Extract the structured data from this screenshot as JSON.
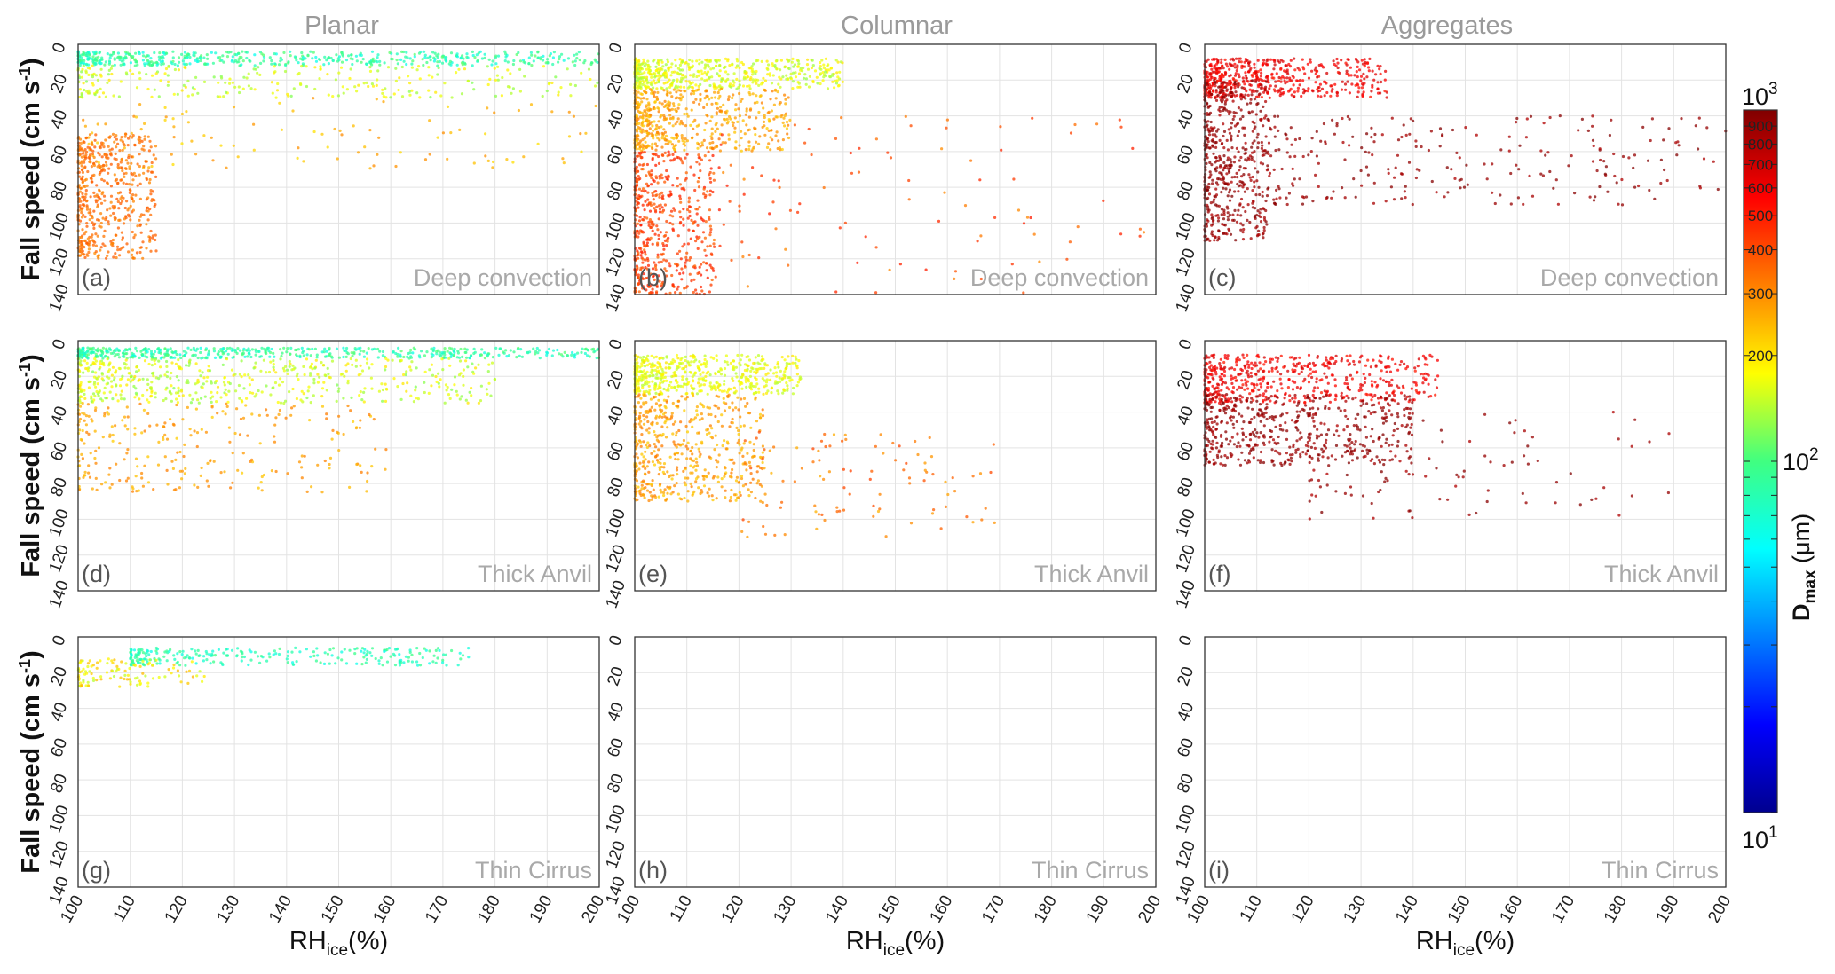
{
  "figure": {
    "columns": [
      "Planar",
      "Columnar",
      "Aggregates"
    ],
    "rows": [
      "Deep convection",
      "Thick Anvil",
      "Thin Cirrus"
    ],
    "panel_labels": [
      "(a)",
      "(b)",
      "(c)",
      "(d)",
      "(e)",
      "(f)",
      "(g)",
      "(h)",
      "(i)"
    ],
    "ylabel_main": "Fall speed (cm s",
    "ylabel_sup": "-1",
    "ylabel_end": ")",
    "xlabel_main": "RH",
    "xlabel_sub": "ice",
    "xlabel_end": "(%)",
    "colorbar": {
      "label_main": "D",
      "label_sub": "max",
      "label_unit": " (μm)",
      "major_labels": [
        {
          "base": "10",
          "exp": "1",
          "value": 10
        },
        {
          "base": "10",
          "exp": "2",
          "value": 100
        },
        {
          "base": "10",
          "exp": "3",
          "value": 1000
        }
      ],
      "minor_labels": [
        "200",
        "300",
        "400",
        "500",
        "600",
        "700",
        "800",
        "900"
      ],
      "minor_values": [
        200,
        300,
        400,
        500,
        600,
        700,
        800,
        900
      ],
      "colormap": "jet"
    }
  },
  "chart_data": [
    {
      "type": "scatter",
      "panel": "(a)",
      "habit": "Planar",
      "regime": "Deep convection",
      "xlabel": "RHice(%)",
      "ylabel": "Fall speed (cm s-1)",
      "xlim": [
        100,
        200
      ],
      "ylim": [
        0,
        140
      ],
      "y_inverted": true,
      "x_ticks": [
        100,
        110,
        120,
        130,
        140,
        150,
        160,
        170,
        180,
        190,
        200
      ],
      "y_ticks": [
        0,
        20,
        40,
        60,
        80,
        100,
        120,
        140
      ],
      "grid": true,
      "x_tick_labels_shown": false,
      "clusters": [
        {
          "x": [
            100,
            200
          ],
          "y": [
            4,
            12
          ],
          "dmax_um": [
            60,
            110
          ],
          "density": "high"
        },
        {
          "x": [
            100,
            200
          ],
          "y": [
            12,
            30
          ],
          "dmax_um": [
            120,
            200
          ],
          "density": "medium"
        },
        {
          "x": [
            100,
            200
          ],
          "y": [
            30,
            70
          ],
          "dmax_um": [
            200,
            300
          ],
          "density": "low"
        },
        {
          "x": [
            100,
            115
          ],
          "y": [
            50,
            120
          ],
          "dmax_um": [
            300,
            380
          ],
          "density": "high"
        }
      ]
    },
    {
      "type": "scatter",
      "panel": "(b)",
      "habit": "Columnar",
      "regime": "Deep convection",
      "xlabel": "RHice(%)",
      "ylabel": "Fall speed (cm s-1)",
      "xlim": [
        100,
        200
      ],
      "ylim": [
        0,
        140
      ],
      "y_inverted": true,
      "x_ticks": [
        100,
        110,
        120,
        130,
        140,
        150,
        160,
        170,
        180,
        190,
        200
      ],
      "y_ticks": [
        0,
        20,
        40,
        60,
        80,
        100,
        120,
        140
      ],
      "grid": true,
      "x_tick_labels_shown": false,
      "clusters": [
        {
          "x": [
            100,
            140
          ],
          "y": [
            8,
            25
          ],
          "dmax_um": [
            130,
            200
          ],
          "density": "high"
        },
        {
          "x": [
            100,
            130
          ],
          "y": [
            25,
            60
          ],
          "dmax_um": [
            220,
            320
          ],
          "density": "high"
        },
        {
          "x": [
            100,
            115
          ],
          "y": [
            60,
            140
          ],
          "dmax_um": [
            350,
            500
          ],
          "density": "high"
        },
        {
          "x": [
            115,
            200
          ],
          "y": [
            40,
            140
          ],
          "dmax_um": [
            300,
            500
          ],
          "density": "low"
        }
      ]
    },
    {
      "type": "scatter",
      "panel": "(c)",
      "habit": "Aggregates",
      "regime": "Deep convection",
      "xlabel": "RHice(%)",
      "ylabel": "Fall speed (cm s-1)",
      "xlim": [
        100,
        200
      ],
      "ylim": [
        0,
        140
      ],
      "y_inverted": true,
      "x_ticks": [
        100,
        110,
        120,
        130,
        140,
        150,
        160,
        170,
        180,
        190,
        200
      ],
      "y_ticks": [
        0,
        20,
        40,
        60,
        80,
        100,
        120,
        140
      ],
      "grid": true,
      "x_tick_labels_shown": false,
      "clusters": [
        {
          "x": [
            100,
            135
          ],
          "y": [
            8,
            30
          ],
          "dmax_um": [
            500,
            700
          ],
          "density": "high"
        },
        {
          "x": [
            100,
            112
          ],
          "y": [
            20,
            110
          ],
          "dmax_um": [
            800,
            1000
          ],
          "density": "high"
        },
        {
          "x": [
            112,
            200
          ],
          "y": [
            40,
            90
          ],
          "dmax_um": [
            800,
            1000
          ],
          "density": "medium"
        }
      ]
    },
    {
      "type": "scatter",
      "panel": "(d)",
      "habit": "Planar",
      "regime": "Thick Anvil",
      "xlabel": "RHice(%)",
      "ylabel": "Fall speed (cm s-1)",
      "xlim": [
        100,
        200
      ],
      "ylim": [
        0,
        140
      ],
      "y_inverted": true,
      "x_ticks": [
        100,
        110,
        120,
        130,
        140,
        150,
        160,
        170,
        180,
        190,
        200
      ],
      "y_ticks": [
        0,
        20,
        40,
        60,
        80,
        100,
        120,
        140
      ],
      "grid": true,
      "x_tick_labels_shown": false,
      "clusters": [
        {
          "x": [
            100,
            200
          ],
          "y": [
            4,
            10
          ],
          "dmax_um": [
            60,
            110
          ],
          "density": "high"
        },
        {
          "x": [
            100,
            180
          ],
          "y": [
            10,
            35
          ],
          "dmax_um": [
            120,
            200
          ],
          "density": "high"
        },
        {
          "x": [
            100,
            160
          ],
          "y": [
            35,
            85
          ],
          "dmax_um": [
            220,
            320
          ],
          "density": "medium"
        }
      ]
    },
    {
      "type": "scatter",
      "panel": "(e)",
      "habit": "Columnar",
      "regime": "Thick Anvil",
      "xlabel": "RHice(%)",
      "ylabel": "Fall speed (cm s-1)",
      "xlim": [
        100,
        200
      ],
      "ylim": [
        0,
        140
      ],
      "y_inverted": true,
      "x_ticks": [
        100,
        110,
        120,
        130,
        140,
        150,
        160,
        170,
        180,
        190,
        200
      ],
      "y_ticks": [
        0,
        20,
        40,
        60,
        80,
        100,
        120,
        140
      ],
      "grid": true,
      "x_tick_labels_shown": false,
      "clusters": [
        {
          "x": [
            100,
            132
          ],
          "y": [
            8,
            30
          ],
          "dmax_um": [
            140,
            200
          ],
          "density": "high"
        },
        {
          "x": [
            100,
            125
          ],
          "y": [
            30,
            90
          ],
          "dmax_um": [
            220,
            330
          ],
          "density": "high"
        },
        {
          "x": [
            120,
            170
          ],
          "y": [
            50,
            110
          ],
          "dmax_um": [
            250,
            420
          ],
          "density": "low"
        }
      ]
    },
    {
      "type": "scatter",
      "panel": "(f)",
      "habit": "Aggregates",
      "regime": "Thick Anvil",
      "xlabel": "RHice(%)",
      "ylabel": "Fall speed (cm s-1)",
      "xlim": [
        100,
        200
      ],
      "ylim": [
        0,
        140
      ],
      "y_inverted": true,
      "x_ticks": [
        100,
        110,
        120,
        130,
        140,
        150,
        160,
        170,
        180,
        190,
        200
      ],
      "y_ticks": [
        0,
        20,
        40,
        60,
        80,
        100,
        120,
        140
      ],
      "grid": true,
      "x_tick_labels_shown": false,
      "clusters": [
        {
          "x": [
            100,
            145
          ],
          "y": [
            8,
            35
          ],
          "dmax_um": [
            500,
            700
          ],
          "density": "high"
        },
        {
          "x": [
            100,
            140
          ],
          "y": [
            30,
            70
          ],
          "dmax_um": [
            800,
            1000
          ],
          "density": "high"
        },
        {
          "x": [
            120,
            190
          ],
          "y": [
            40,
            100
          ],
          "dmax_um": [
            800,
            1000
          ],
          "density": "low"
        }
      ]
    },
    {
      "type": "scatter",
      "panel": "(g)",
      "habit": "Planar",
      "regime": "Thin Cirrus",
      "xlabel": "RHice(%)",
      "ylabel": "Fall speed (cm s-1)",
      "xlim": [
        100,
        200
      ],
      "ylim": [
        0,
        140
      ],
      "y_inverted": true,
      "x_ticks": [
        100,
        110,
        120,
        130,
        140,
        150,
        160,
        170,
        180,
        190,
        200
      ],
      "y_ticks": [
        0,
        20,
        40,
        60,
        80,
        100,
        120,
        140
      ],
      "grid": true,
      "x_tick_labels_shown": true,
      "clusters": [
        {
          "x": [
            110,
            175
          ],
          "y": [
            6,
            16
          ],
          "dmax_um": [
            60,
            100
          ],
          "density": "medium"
        },
        {
          "x": [
            100,
            125
          ],
          "y": [
            12,
            28
          ],
          "dmax_um": [
            140,
            250
          ],
          "density": "low"
        }
      ]
    },
    {
      "type": "scatter",
      "panel": "(h)",
      "habit": "Columnar",
      "regime": "Thin Cirrus",
      "xlabel": "RHice(%)",
      "ylabel": "Fall speed (cm s-1)",
      "xlim": [
        100,
        200
      ],
      "ylim": [
        0,
        140
      ],
      "y_inverted": true,
      "x_ticks": [
        100,
        110,
        120,
        130,
        140,
        150,
        160,
        170,
        180,
        190,
        200
      ],
      "y_ticks": [
        0,
        20,
        40,
        60,
        80,
        100,
        120,
        140
      ],
      "grid": true,
      "x_tick_labels_shown": true,
      "clusters": []
    },
    {
      "type": "scatter",
      "panel": "(i)",
      "habit": "Aggregates",
      "regime": "Thin Cirrus",
      "xlabel": "RHice(%)",
      "ylabel": "Fall speed (cm s-1)",
      "xlim": [
        100,
        200
      ],
      "ylim": [
        0,
        140
      ],
      "y_inverted": true,
      "x_ticks": [
        100,
        110,
        120,
        130,
        140,
        150,
        160,
        170,
        180,
        190,
        200
      ],
      "y_ticks": [
        0,
        20,
        40,
        60,
        80,
        100,
        120,
        140
      ],
      "grid": true,
      "x_tick_labels_shown": true,
      "clusters": []
    }
  ]
}
